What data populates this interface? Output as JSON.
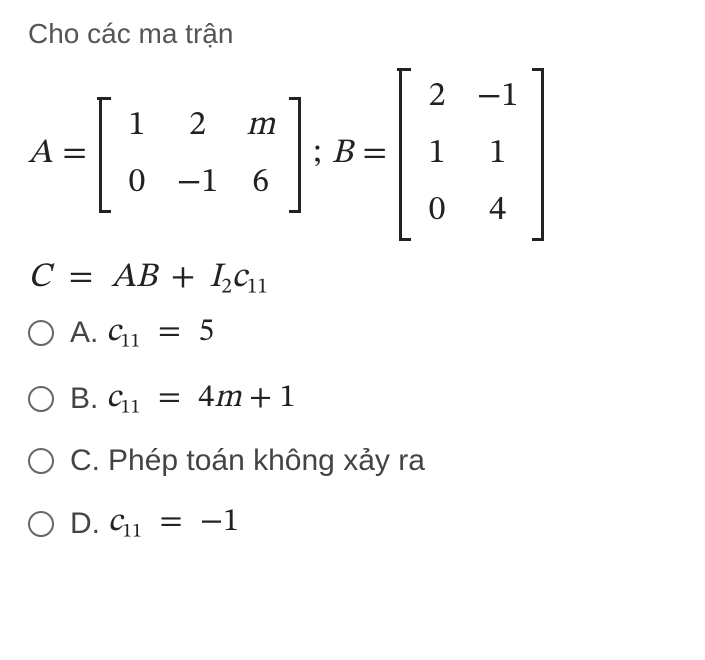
{
  "prompt_text": "Cho các ma trận",
  "matrices_line": {
    "A_label": "A",
    "eq": "=",
    "sep": ";",
    "B_label": "B",
    "A": {
      "rows": 2,
      "cols": 3,
      "cells": [
        "1",
        "2",
        "m",
        "0",
        "−1",
        "6"
      ],
      "cell_styles": [
        "mn",
        "mn",
        "mi",
        "mn",
        "mn",
        "mn"
      ]
    },
    "B": {
      "rows": 3,
      "cols": 2,
      "cells": [
        "2",
        "−1",
        "1",
        "1",
        "0",
        "4"
      ],
      "cell_styles": [
        "mn",
        "mn",
        "mn",
        "mn",
        "mn",
        "mn"
      ]
    }
  },
  "definition": {
    "C": "C",
    "eq": "=",
    "AB": "AB",
    "plus": "+",
    "I": "I",
    "I_sub": "2",
    "c": "c",
    "c_sub": "11"
  },
  "options": {
    "A": {
      "letter": "A.",
      "lhs_var": "c",
      "lhs_sub": "11",
      "eq": "=",
      "rhs": "5"
    },
    "B": {
      "letter": "B.",
      "lhs_var": "c",
      "lhs_sub": "11",
      "eq": "=",
      "rhs_pre": "4",
      "rhs_var": "m",
      "rhs_post": " + 1"
    },
    "C": {
      "letter": "C.",
      "text": "Phép toán không xảy ra"
    },
    "D": {
      "letter": "D.",
      "lhs_var": "c",
      "lhs_sub": "11",
      "eq": "=",
      "rhs": "−1"
    }
  },
  "colors": {
    "background": "#ffffff",
    "prompt_color": "#555555",
    "math_color": "#222222",
    "radio_border": "#666666"
  }
}
